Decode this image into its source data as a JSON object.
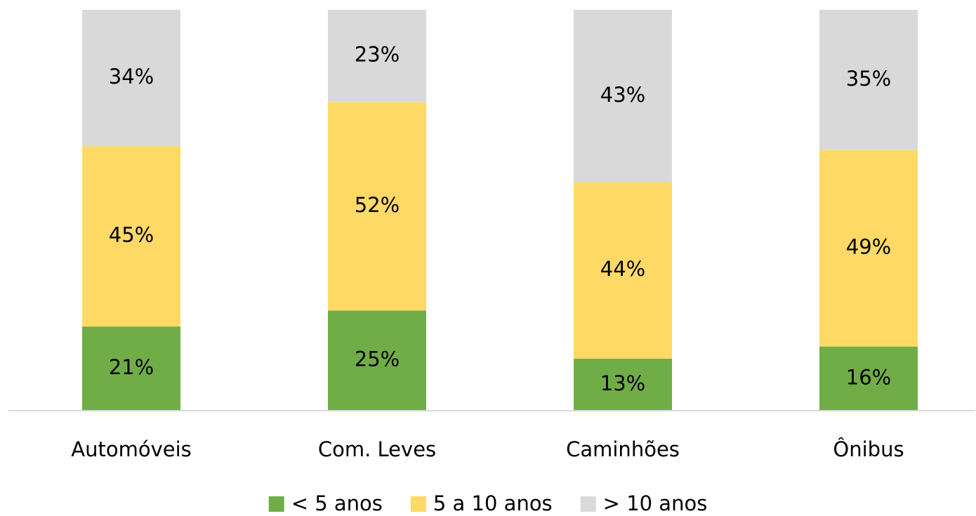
{
  "chart_data": {
    "type": "stacked_bar",
    "categories": [
      "Automóveis",
      "Com. Leves",
      "Caminhões",
      "Ônibus"
    ],
    "series": [
      {
        "name": "< 5 anos",
        "color": "#70ad47",
        "values": [
          21,
          25,
          13,
          16
        ],
        "value_labels": [
          "21%",
          "25%",
          "13%",
          "16%"
        ]
      },
      {
        "name": "5 a 10 anos",
        "color": "#ffd966",
        "values": [
          45,
          52,
          44,
          49
        ],
        "value_labels": [
          "45%",
          "52%",
          "44%",
          "49%"
        ]
      },
      {
        "name": "> 10 anos",
        "color": "#d9d9d9",
        "values": [
          34,
          23,
          43,
          35
        ],
        "value_labels": [
          "34%",
          "23%",
          "43%",
          "35%"
        ]
      }
    ],
    "ylim": [
      0,
      100
    ],
    "legend": "bottom"
  }
}
